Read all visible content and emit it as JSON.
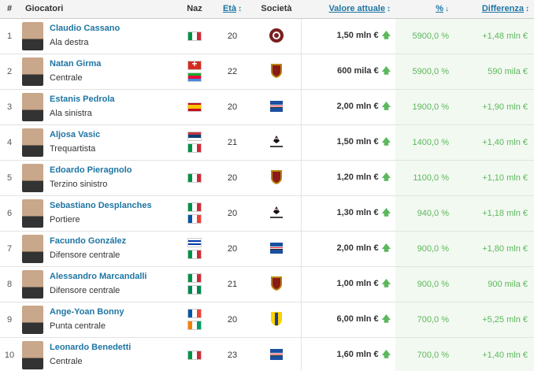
{
  "headers": {
    "num": "#",
    "player": "Giocatori",
    "naz": "Naz",
    "age": "Età",
    "club": "Società",
    "value": "Valore attuale",
    "pct": "%",
    "diff": "Differenza"
  },
  "colors": {
    "link": "#1d75a3",
    "positive": "#5cb85c",
    "header_bg": "#f4f4f4"
  },
  "rows": [
    {
      "num": "1",
      "name": "Claudio Cassano",
      "position": "Ala destra",
      "flags": [
        "italy"
      ],
      "age": "20",
      "club_icon": "cittadella-crest-icon",
      "value": "1,50 mln €",
      "pct": "5900,0 %",
      "diff": "+1,48 mln €"
    },
    {
      "num": "2",
      "name": "Natan Girma",
      "position": "Centrale",
      "flags": [
        "switzerland",
        "eritrea"
      ],
      "age": "22",
      "club_icon": "reggiana-crest-icon",
      "value": "600 mila €",
      "pct": "5900,0 %",
      "diff": "590 mila €"
    },
    {
      "num": "3",
      "name": "Estanis Pedrola",
      "position": "Ala sinistra",
      "flags": [
        "spain"
      ],
      "age": "20",
      "club_icon": "sampdoria-crest-icon",
      "value": "2,00 mln €",
      "pct": "1900,0 %",
      "diff": "+1,90 mln €"
    },
    {
      "num": "4",
      "name": "Aljosa Vasic",
      "position": "Trequartista",
      "flags": [
        "serbia",
        "italy"
      ],
      "age": "21",
      "club_icon": "palermo-crest-icon",
      "value": "1,50 mln €",
      "pct": "1400,0 %",
      "diff": "+1,40 mln €"
    },
    {
      "num": "5",
      "name": "Edoardo Pieragnolo",
      "position": "Terzino sinistro",
      "flags": [
        "italy"
      ],
      "age": "20",
      "club_icon": "reggiana-crest-icon",
      "value": "1,20 mln €",
      "pct": "1100,0 %",
      "diff": "+1,10 mln €"
    },
    {
      "num": "6",
      "name": "Sebastiano Desplanches",
      "position": "Portiere",
      "flags": [
        "italy",
        "france"
      ],
      "age": "20",
      "club_icon": "palermo-crest-icon",
      "value": "1,30 mln €",
      "pct": "940,0 %",
      "diff": "+1,18 mln €"
    },
    {
      "num": "7",
      "name": "Facundo González",
      "position": "Difensore centrale",
      "flags": [
        "uruguay",
        "italy"
      ],
      "age": "20",
      "club_icon": "sampdoria-crest-icon",
      "value": "2,00 mln €",
      "pct": "900,0 %",
      "diff": "+1,80 mln €"
    },
    {
      "num": "8",
      "name": "Alessandro Marcandalli",
      "position": "Difensore centrale",
      "flags": [
        "italy",
        "nigeria"
      ],
      "age": "21",
      "club_icon": "reggiana-crest-icon",
      "value": "1,00 mln €",
      "pct": "900,0 %",
      "diff": "900 mila €"
    },
    {
      "num": "9",
      "name": "Ange-Yoan Bonny",
      "position": "Punta centrale",
      "flags": [
        "france",
        "ivory-coast"
      ],
      "age": "20",
      "club_icon": "parma-crest-icon",
      "value": "6,00 mln €",
      "pct": "700,0 %",
      "diff": "+5,25 mln €"
    },
    {
      "num": "10",
      "name": "Leonardo Benedetti",
      "position": "Centrale",
      "flags": [
        "italy"
      ],
      "age": "23",
      "club_icon": "sampdoria-crest-icon",
      "value": "1,60 mln €",
      "pct": "700,0 %",
      "diff": "+1,40 mln €"
    }
  ]
}
